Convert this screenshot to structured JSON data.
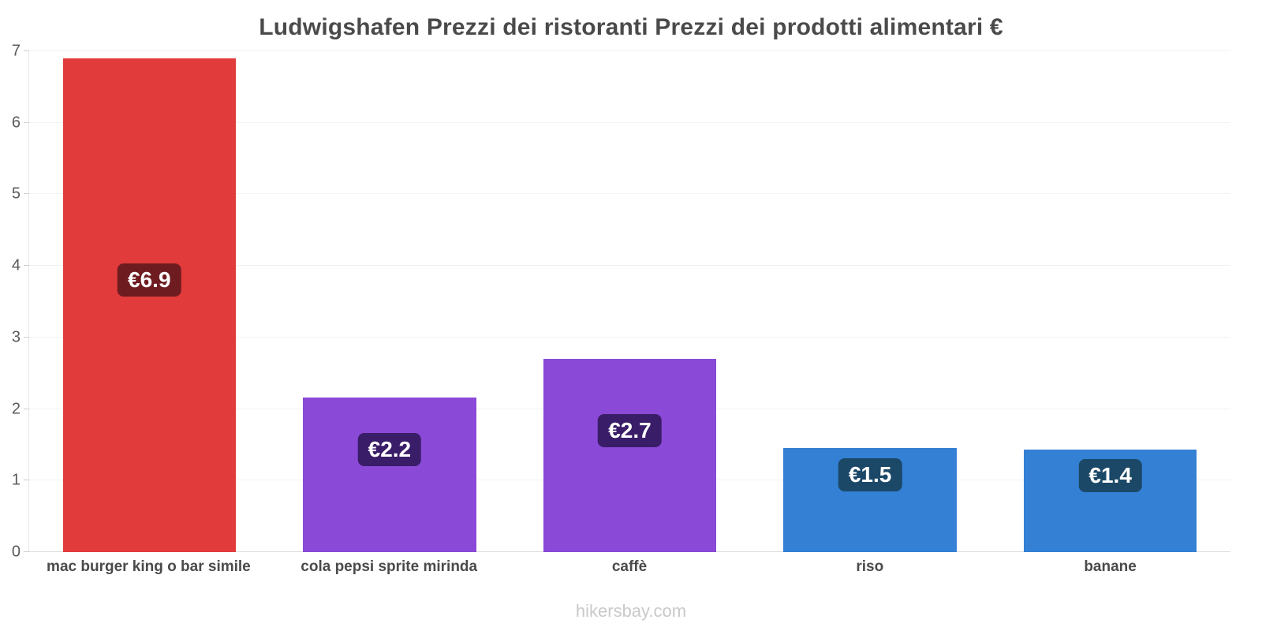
{
  "chart_data": {
    "type": "bar",
    "title": "Ludwigshafen Prezzi dei ristoranti Prezzi dei prodotti alimentari €",
    "categories": [
      "mac burger king o bar simile",
      "cola pepsi sprite mirinda",
      "caffè",
      "riso",
      "banane"
    ],
    "values": [
      6.9,
      2.16,
      2.7,
      1.45,
      1.43
    ],
    "value_labels": [
      "€6.9",
      "€2.2",
      "€2.7",
      "€1.5",
      "€1.4"
    ],
    "bar_colors": [
      "#e23b3b",
      "#8a49d6",
      "#8a49d6",
      "#3380d4",
      "#3380d4"
    ],
    "label_bg_colors": [
      "#6e1c20",
      "#3a1d68",
      "#3a1d68",
      "#1c4868",
      "#1c4868"
    ],
    "ylim": [
      0,
      7
    ],
    "yticks": [
      0,
      1,
      2,
      3,
      4,
      5,
      6,
      7
    ],
    "xlabel": "",
    "ylabel": "",
    "grid": true,
    "legend_position": "none"
  },
  "footer": {
    "text": "hikersbay.com"
  }
}
